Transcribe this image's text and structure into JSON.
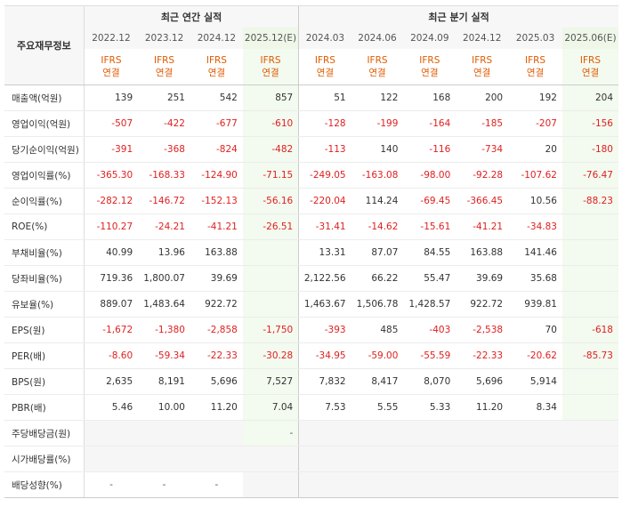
{
  "table_title": "주요재무정보",
  "group_headers": {
    "annual": "최근 연간 실적",
    "quarterly": "최근 분기 실적"
  },
  "periods": [
    {
      "label": "2022.12",
      "acc1": "IFRS",
      "acc2": "연결"
    },
    {
      "label": "2023.12",
      "acc1": "IFRS",
      "acc2": "연결"
    },
    {
      "label": "2024.12",
      "acc1": "IFRS",
      "acc2": "연결"
    },
    {
      "label": "2025.12(E)",
      "acc1": "IFRS",
      "acc2": "연결"
    },
    {
      "label": "2024.03",
      "acc1": "IFRS",
      "acc2": "연결"
    },
    {
      "label": "2024.06",
      "acc1": "IFRS",
      "acc2": "연결"
    },
    {
      "label": "2024.09",
      "acc1": "IFRS",
      "acc2": "연결"
    },
    {
      "label": "2024.12",
      "acc1": "IFRS",
      "acc2": "연결"
    },
    {
      "label": "2025.03",
      "acc1": "IFRS",
      "acc2": "연결"
    },
    {
      "label": "2025.06(E)",
      "acc1": "IFRS",
      "acc2": "연결"
    }
  ],
  "rows": [
    {
      "label": "매출액(억원)",
      "values": [
        "139",
        "251",
        "542",
        "857",
        "51",
        "122",
        "168",
        "200",
        "192",
        "204"
      ]
    },
    {
      "label": "영업이익(억원)",
      "values": [
        "-507",
        "-422",
        "-677",
        "-610",
        "-128",
        "-199",
        "-164",
        "-185",
        "-207",
        "-156"
      ]
    },
    {
      "label": "당기순이익(억원)",
      "values": [
        "-391",
        "-368",
        "-824",
        "-482",
        "-113",
        "140",
        "-116",
        "-734",
        "20",
        "-180"
      ]
    },
    {
      "label": "영업이익률(%)",
      "values": [
        "-365.30",
        "-168.33",
        "-124.90",
        "-71.15",
        "-249.05",
        "-163.08",
        "-98.00",
        "-92.28",
        "-107.62",
        "-76.47"
      ]
    },
    {
      "label": "순이익률(%)",
      "values": [
        "-282.12",
        "-146.72",
        "-152.13",
        "-56.16",
        "-220.04",
        "114.24",
        "-69.45",
        "-366.45",
        "10.56",
        "-88.23"
      ]
    },
    {
      "label": "ROE(%)",
      "values": [
        "-110.27",
        "-24.21",
        "-41.21",
        "-26.51",
        "-31.41",
        "-14.62",
        "-15.61",
        "-41.21",
        "-34.83",
        ""
      ]
    },
    {
      "label": "부채비율(%)",
      "values": [
        "40.99",
        "13.96",
        "163.88",
        "",
        "13.31",
        "87.07",
        "84.55",
        "163.88",
        "141.46",
        ""
      ]
    },
    {
      "label": "당좌비율(%)",
      "values": [
        "719.36",
        "1,800.07",
        "39.69",
        "",
        "2,122.56",
        "66.22",
        "55.47",
        "39.69",
        "35.68",
        ""
      ]
    },
    {
      "label": "유보율(%)",
      "values": [
        "889.07",
        "1,483.64",
        "922.72",
        "",
        "1,463.67",
        "1,506.78",
        "1,428.57",
        "922.72",
        "939.81",
        ""
      ]
    },
    {
      "label": "EPS(원)",
      "values": [
        "-1,672",
        "-1,380",
        "-2,858",
        "-1,750",
        "-393",
        "485",
        "-403",
        "-2,538",
        "70",
        "-618"
      ]
    },
    {
      "label": "PER(배)",
      "values": [
        "-8.60",
        "-59.34",
        "-22.33",
        "-30.28",
        "-34.95",
        "-59.00",
        "-55.59",
        "-22.33",
        "-20.62",
        "-85.73"
      ]
    },
    {
      "label": "BPS(원)",
      "values": [
        "2,635",
        "8,191",
        "5,696",
        "7,527",
        "7,832",
        "8,417",
        "8,070",
        "5,696",
        "5,914",
        ""
      ]
    },
    {
      "label": "PBR(배)",
      "values": [
        "5.46",
        "10.00",
        "11.20",
        "7.04",
        "7.53",
        "5.55",
        "5.33",
        "11.20",
        "8.34",
        ""
      ]
    },
    {
      "label": "주당배당금(원)",
      "values": [
        "",
        "",
        "",
        "-",
        "",
        "",
        "",
        "",
        "",
        ""
      ]
    },
    {
      "label": "시가배당률(%)",
      "values": [
        "",
        "",
        "",
        "",
        "",
        "",
        "",
        "",
        "",
        ""
      ]
    },
    {
      "label": "배당성향(%)",
      "values": [
        "-",
        "-",
        "-",
        "",
        "",
        "",
        "",
        "",
        "",
        ""
      ]
    }
  ]
}
